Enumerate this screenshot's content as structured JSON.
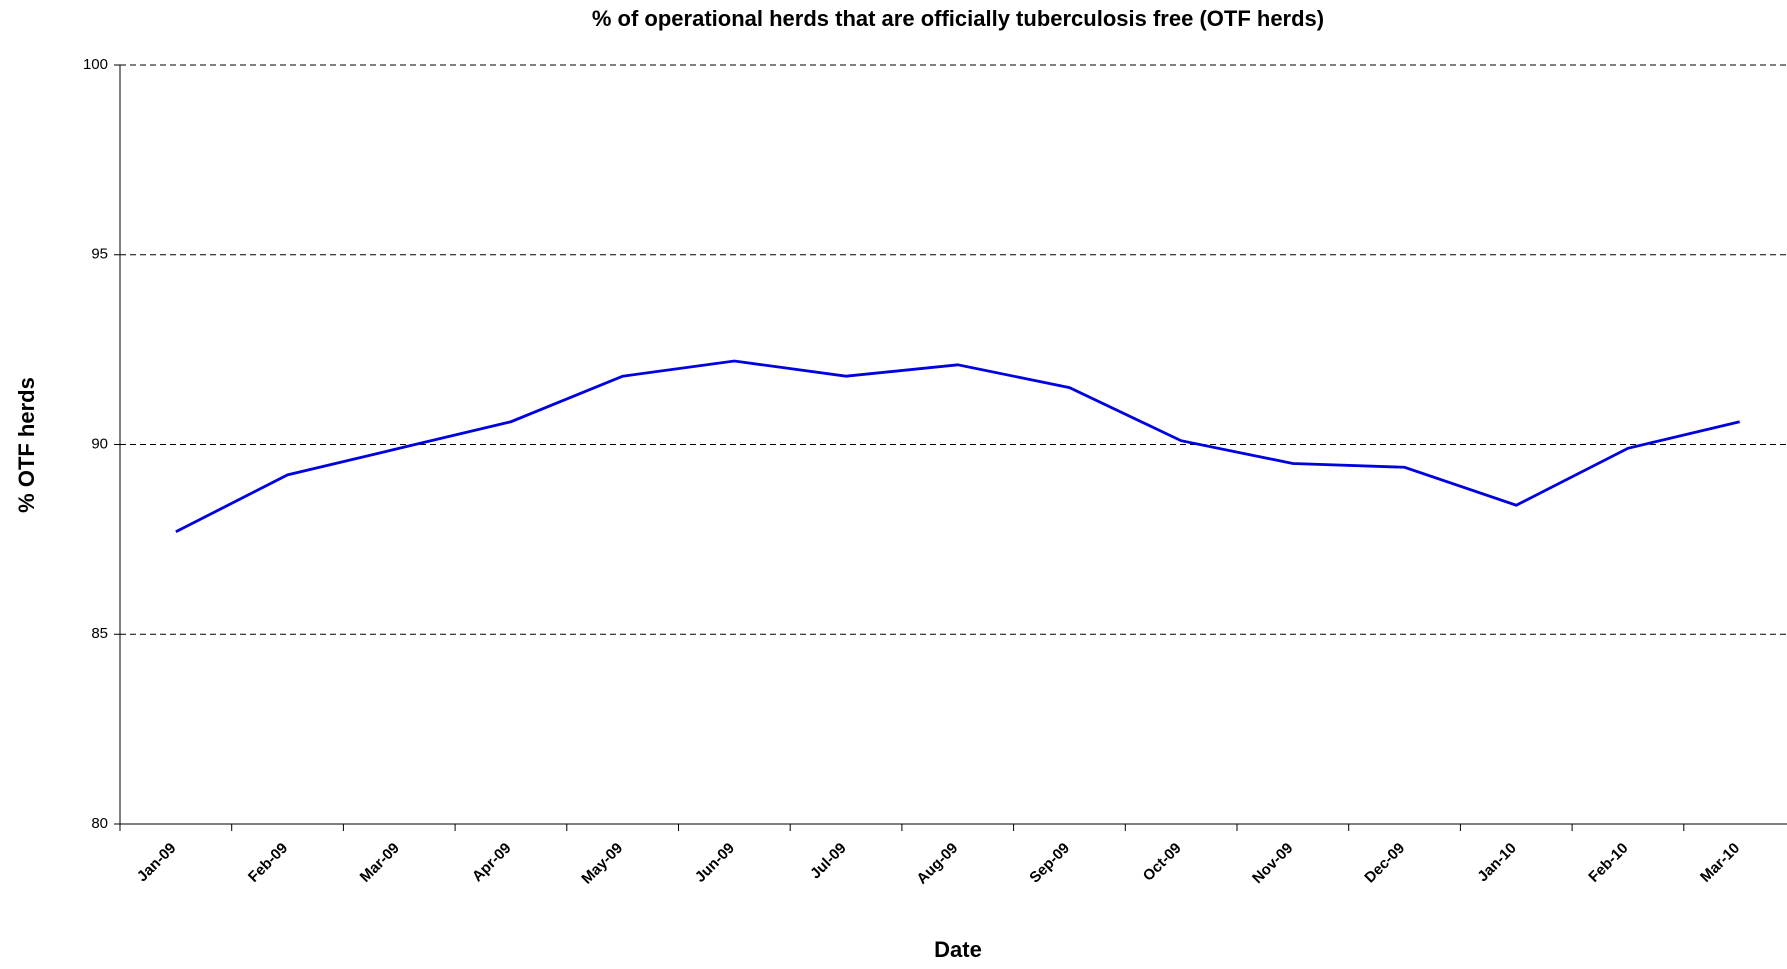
{
  "chart_data": {
    "type": "line",
    "title": "% of operational herds that are officially tuberculosis free (OTF herds)",
    "x_label": "Date",
    "y_label": "% OTF herds",
    "categories": [
      "Jan-09",
      "Feb-09",
      "Mar-09",
      "Apr-09",
      "May-09",
      "Jun-09",
      "Jul-09",
      "Aug-09",
      "Sep-09",
      "Oct-09",
      "Nov-09",
      "Dec-09",
      "Jan-10",
      "Feb-10",
      "Mar-10"
    ],
    "series": [
      {
        "name": "% OTF herds",
        "color": "#0000e0",
        "values": [
          87.7,
          89.2,
          89.9,
          90.6,
          91.8,
          92.2,
          91.8,
          92.1,
          91.5,
          90.1,
          89.5,
          89.4,
          88.4,
          89.9,
          90.6
        ]
      }
    ],
    "ylim": [
      80,
      100
    ],
    "yticks": [
      80,
      85,
      90,
      95,
      100
    ],
    "grid": true
  }
}
